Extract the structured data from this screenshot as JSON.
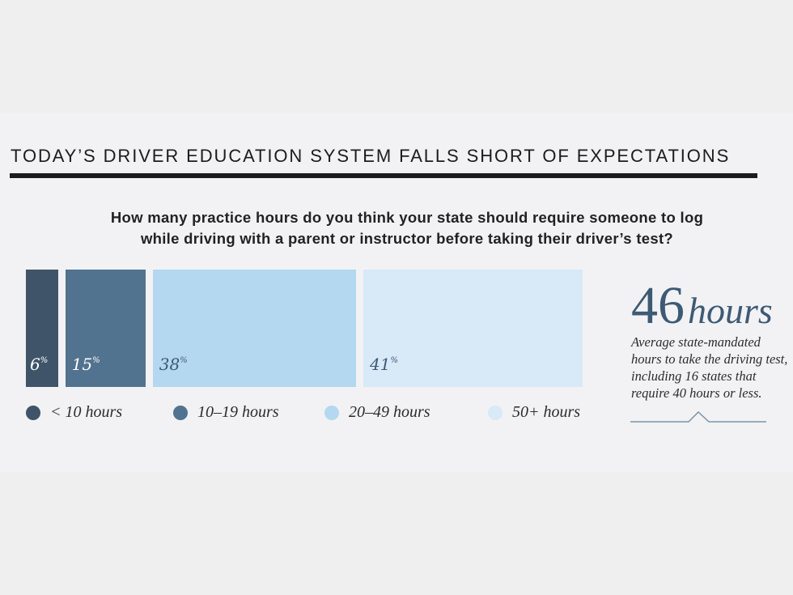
{
  "title": "TODAY’S DRIVER EDUCATION SYSTEM FALLS SHORT OF EXPECTATIONS",
  "question_line1": "How many practice hours do you think your state should require someone to log",
  "question_line2": "while driving with a parent or instructor before taking their driver’s test?",
  "chart_data": {
    "type": "bar",
    "layout": "stacked-horizontal-blocks",
    "categories": [
      "< 10 hours",
      "10–19 hours",
      "20–49 hours",
      "50+ hours"
    ],
    "values": [
      6,
      15,
      38,
      41
    ],
    "value_suffix": "%",
    "colors": [
      "#3f5468",
      "#52738f",
      "#b3d8ef",
      "#d8e9f7"
    ],
    "label_colors": [
      "#ffffff",
      "#ffffff",
      "#3d5a75",
      "#3d5a75"
    ],
    "legend_position": "bottom"
  },
  "callout": {
    "number": "46",
    "unit": "hours",
    "note": "Average state-mandated hours to take the driving test, including 16 states that require 40 hours or less."
  }
}
